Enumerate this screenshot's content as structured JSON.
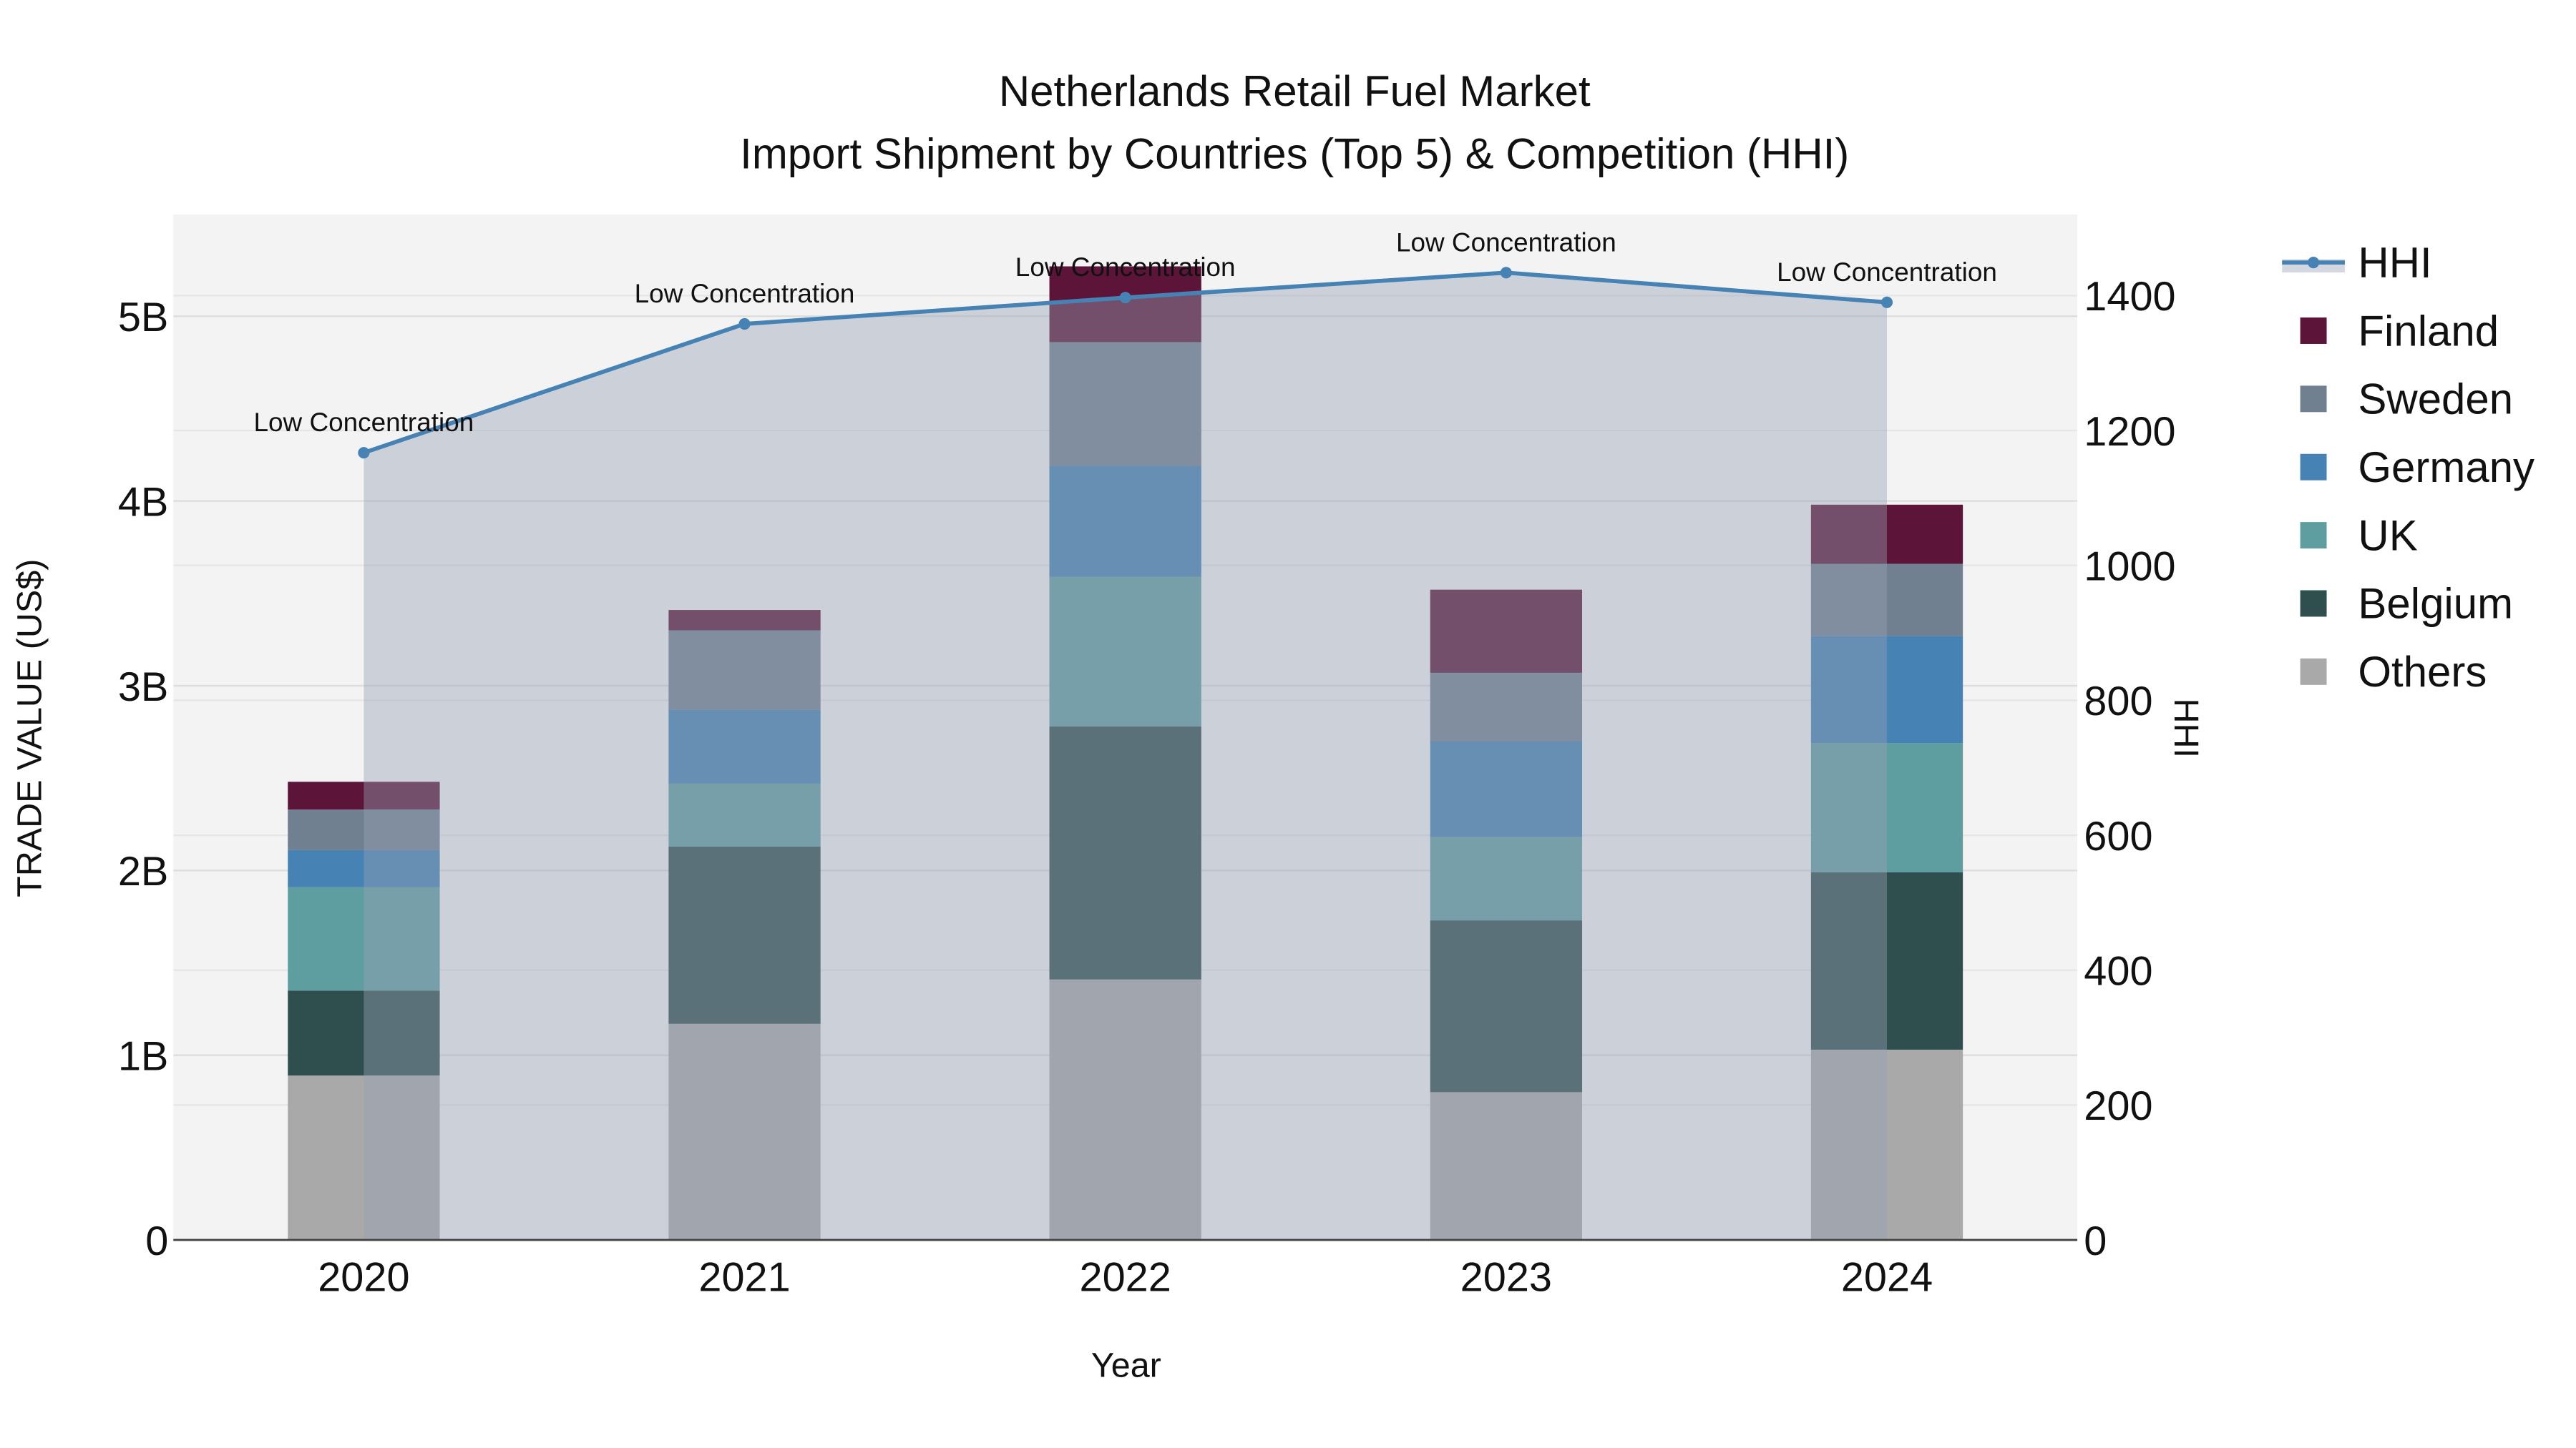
{
  "chart_data": {
    "type": "bar",
    "title": "Netherlands Retail Fuel Market",
    "subtitle": "Import Shipment by Countries (Top 5) & Competition (HHI)",
    "xlabel": "Year",
    "ylabel": "TRADE VALUE (US$)",
    "y2label": "HHI",
    "categories": [
      "2020",
      "2021",
      "2022",
      "2023",
      "2024"
    ],
    "stacked": true,
    "ylim": [
      0,
      5.55
    ],
    "y_unit": "billion US$",
    "yticks": [
      0,
      1,
      2,
      3,
      4,
      5
    ],
    "ytick_labels": [
      "0",
      "1B",
      "2B",
      "3B",
      "4B",
      "5B"
    ],
    "y2lim": [
      0,
      1520
    ],
    "y2ticks": [
      0,
      200,
      400,
      600,
      800,
      1000,
      1200,
      1400
    ],
    "y2tick_labels": [
      "0",
      "200",
      "400",
      "600",
      "800",
      "1000",
      "1200",
      "1400"
    ],
    "grid": true,
    "legend_position": "right",
    "series": [
      {
        "name": "Others",
        "color": "#a9a9a9",
        "values": [
          0.89,
          1.17,
          1.41,
          0.8,
          1.03
        ]
      },
      {
        "name": "Belgium",
        "color": "#2f4f4f",
        "values": [
          0.46,
          0.96,
          1.37,
          0.93,
          0.96
        ]
      },
      {
        "name": "UK",
        "color": "#5f9ea0",
        "values": [
          0.56,
          0.34,
          0.81,
          0.45,
          0.7
        ]
      },
      {
        "name": "Germany",
        "color": "#4682b4",
        "values": [
          0.2,
          0.4,
          0.6,
          0.52,
          0.58
        ]
      },
      {
        "name": "Sweden",
        "color": "#708090",
        "values": [
          0.22,
          0.43,
          0.67,
          0.37,
          0.39
        ]
      },
      {
        "name": "Finland",
        "color": "#5c1438",
        "values": [
          0.15,
          0.11,
          0.41,
          0.45,
          0.32
        ]
      }
    ],
    "hhi": {
      "name": "HHI",
      "color": "#4682b4",
      "values": [
        1167,
        1358,
        1397,
        1434,
        1390
      ],
      "annotations": [
        "Low Concentration",
        "Low Concentration",
        "Low Concentration",
        "Low Concentration",
        "Low Concentration"
      ]
    },
    "legend": [
      "HHI",
      "Finland",
      "Sweden",
      "Germany",
      "UK",
      "Belgium",
      "Others"
    ]
  }
}
